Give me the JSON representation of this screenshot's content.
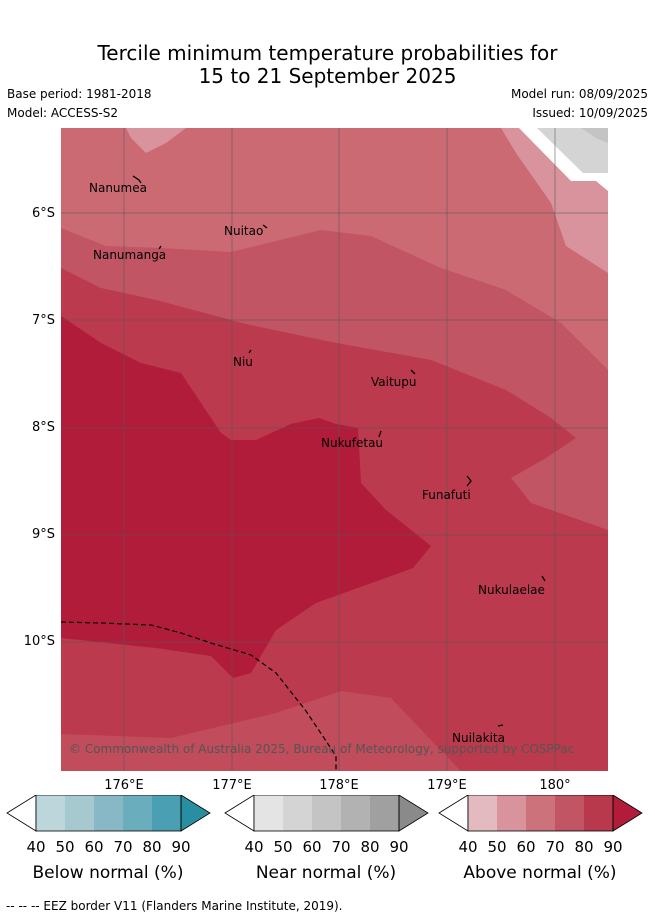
{
  "title": {
    "line1": "Tercile minimum temperature probabilities for",
    "line2": "15 to 21 September 2025"
  },
  "meta": {
    "base_period": "Base period: 1981-2018",
    "model": "Model: ACCESS-S2",
    "model_run": "Model run: 08/09/2025",
    "issued": "Issued: 10/09/2025"
  },
  "map": {
    "lat_labels": [
      "6°S",
      "7°S",
      "8°S",
      "9°S",
      "10°S"
    ],
    "lon_labels": [
      "176°E",
      "177°E",
      "178°E",
      "179°E",
      "180°"
    ],
    "places": [
      {
        "name": "Nanumea",
        "key": "nanumea"
      },
      {
        "name": "Nuitao",
        "key": "nuitao"
      },
      {
        "name": "Nanumanga",
        "key": "nanumanga"
      },
      {
        "name": "Niu",
        "key": "niu"
      },
      {
        "name": "Vaitupu",
        "key": "vaitupu"
      },
      {
        "name": "Nukufetau",
        "key": "nukufetau"
      },
      {
        "name": "Funafuti",
        "key": "funafuti"
      },
      {
        "name": "Nukulaelae",
        "key": "nukulaelae"
      },
      {
        "name": "Nuilakita",
        "key": "nuilakita"
      }
    ],
    "copyright": "© Commonwealth of Australia 2025, Bureau of Meteorology, supported by COSPPac"
  },
  "colorbars": [
    {
      "title": "Below normal (%)",
      "ticks": [
        "40",
        "50",
        "60",
        "70",
        "80",
        "90"
      ],
      "colors": [
        "#ffffff",
        "#bcd6dc",
        "#a6c9d0",
        "#88b8c5",
        "#6aaebd",
        "#4aa0b2",
        "#2a8ea3"
      ]
    },
    {
      "title": "Near normal (%)",
      "ticks": [
        "40",
        "50",
        "60",
        "70",
        "80",
        "90"
      ],
      "colors": [
        "#ffffff",
        "#e4e4e4",
        "#d4d4d4",
        "#c4c4c4",
        "#b2b2b2",
        "#a0a0a0",
        "#8a8a8a"
      ]
    },
    {
      "title": "Above normal (%)",
      "ticks": [
        "40",
        "50",
        "60",
        "70",
        "80",
        "90"
      ],
      "colors": [
        "#ffffff",
        "#e3bac0",
        "#d9939c",
        "#cc727b",
        "#c15563",
        "#b8384c",
        "#b01c3a"
      ]
    }
  ],
  "footer": "--  --  -- EEZ border V11 (Flanders Marine Institute, 2019)."
}
